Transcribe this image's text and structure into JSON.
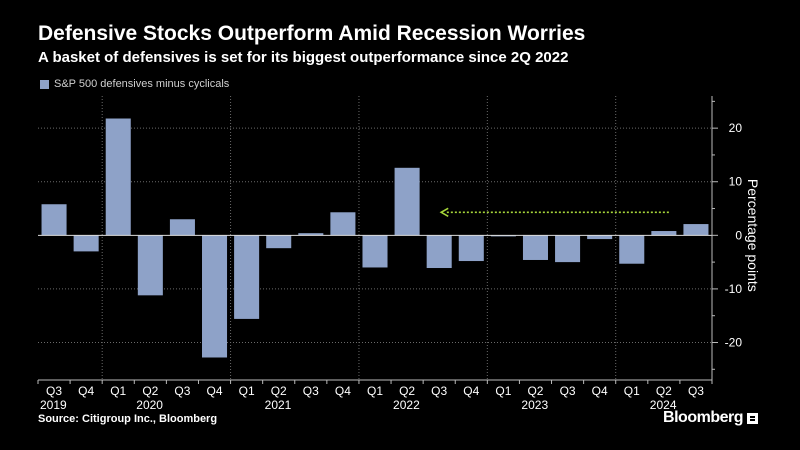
{
  "header": {
    "title": "Defensive Stocks Outperform Amid Recession Worries",
    "subtitle": "A basket of defensives is set for its biggest outperformance since 2Q 2022"
  },
  "legend": {
    "label": "S&P 500 defensives minus cyclicals",
    "color": "#8ea2c8"
  },
  "footer": {
    "source": "Source: Citigroup Inc., Bloomberg",
    "brand": "Bloomberg"
  },
  "colors": {
    "bar": "#8ea2c8",
    "arrow": "#a6d63a",
    "grid": "#6a6a6a",
    "axis": "#bbbbbb"
  },
  "chart_data": {
    "type": "bar",
    "title": "Defensive Stocks Outperform Amid Recession Worries",
    "subtitle": "A basket of defensives is set for its biggest outperformance since 2Q 2022",
    "categories": [
      "Q3 2019",
      "Q4 2019",
      "Q1 2020",
      "Q2 2020",
      "Q3 2020",
      "Q4 2020",
      "Q1 2021",
      "Q2 2021",
      "Q3 2021",
      "Q4 2021",
      "Q1 2022",
      "Q2 2022",
      "Q3 2022",
      "Q4 2022",
      "Q1 2023",
      "Q2 2023",
      "Q3 2023",
      "Q4 2023",
      "Q1 2024",
      "Q2 2024",
      "Q3 2024"
    ],
    "quarter_labels": [
      "Q3",
      "Q4",
      "Q1",
      "Q2",
      "Q3",
      "Q4",
      "Q1",
      "Q2",
      "Q3",
      "Q4",
      "Q1",
      "Q2",
      "Q3",
      "Q4",
      "Q1",
      "Q2",
      "Q3",
      "Q4",
      "Q1",
      "Q2",
      "Q3"
    ],
    "year_labels": [
      {
        "label": "2019",
        "index": 0
      },
      {
        "label": "2020",
        "index": 3
      },
      {
        "label": "2021",
        "index": 7
      },
      {
        "label": "2022",
        "index": 11
      },
      {
        "label": "2023",
        "index": 15
      },
      {
        "label": "2024",
        "index": 19
      }
    ],
    "year_boundaries": [
      1.5,
      5.5,
      9.5,
      13.5,
      17.5
    ],
    "series": [
      {
        "name": "S&P 500 defensives minus cyclicals",
        "values": [
          5.8,
          -3.0,
          21.8,
          -11.2,
          3.0,
          -22.8,
          -15.6,
          -2.4,
          0.4,
          4.3,
          -6.0,
          12.6,
          -6.1,
          -4.8,
          -0.2,
          -4.6,
          -5.0,
          -0.7,
          -5.3,
          0.8,
          2.1
        ]
      }
    ],
    "ylabel": "Percentage points",
    "ylim": [
      -27,
      26
    ],
    "yticks": [
      20,
      10,
      0,
      -10,
      -20
    ],
    "annotation": {
      "type": "arrow",
      "from_index": 19,
      "to_index": 12,
      "value": 4.3
    }
  }
}
